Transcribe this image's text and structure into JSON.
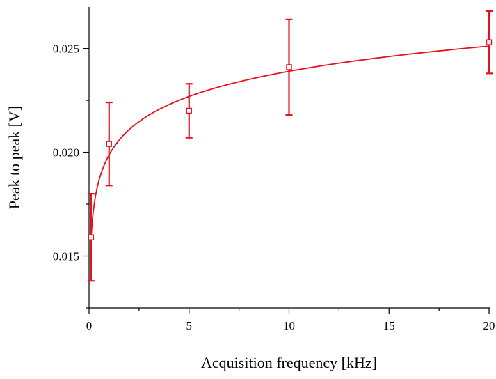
{
  "chart_data": {
    "type": "scatter",
    "title": "",
    "xlabel": "Acquisition frequency [kHz]",
    "ylabel": "Peak to peak [V]",
    "xlim": [
      0,
      20
    ],
    "ylim": [
      0.0125,
      0.027
    ],
    "x_ticks": [
      0,
      5,
      10,
      15,
      20
    ],
    "x_tick_labels": [
      "0",
      "5",
      "10",
      "15",
      "20"
    ],
    "x_minor_step": 2.5,
    "y_ticks": [
      0.015,
      0.02,
      0.025
    ],
    "y_tick_labels": [
      "0.015",
      "0.020",
      "0.025"
    ],
    "y_minor_step": 0.0025,
    "grid": false,
    "color": "#e8101a",
    "series": [
      {
        "points": [
          {
            "x": 0.1,
            "y": 0.0159,
            "err_low": 0.0138,
            "err_high": 0.018
          },
          {
            "x": 1,
            "y": 0.0204,
            "err_low": 0.0184,
            "err_high": 0.0224
          },
          {
            "x": 5,
            "y": 0.022,
            "err_low": 0.0207,
            "err_high": 0.0233
          },
          {
            "x": 10,
            "y": 0.0241,
            "err_low": 0.0218,
            "err_high": 0.0264
          },
          {
            "x": 20,
            "y": 0.0253,
            "err_low": 0.0238,
            "err_high": 0.0268
          }
        ]
      }
    ],
    "fit": {
      "model": "logarithmic",
      "a": 0.01987,
      "b": 0.001751
    }
  }
}
